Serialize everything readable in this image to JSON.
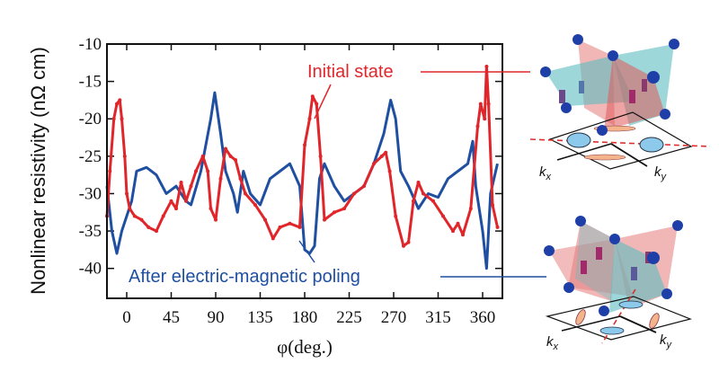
{
  "chart_data": {
    "type": "line",
    "xlabel": "φ(deg.)",
    "ylabel": "Nonlinear resistivity (nΩ cm)",
    "xlim": [
      -20,
      380
    ],
    "ylim": [
      -44,
      -10
    ],
    "xticks": [
      0,
      45,
      90,
      135,
      180,
      225,
      270,
      315,
      360
    ],
    "yticks": [
      -10,
      -15,
      -20,
      -25,
      -30,
      -35,
      -40
    ],
    "grid": false,
    "series": [
      {
        "name": "Initial state",
        "color": "#e0262b",
        "x": [
          -20,
          -17,
          -13,
          -10,
          -7,
          -5,
          -2,
          0,
          3,
          8,
          15,
          22,
          30,
          37,
          45,
          50,
          55,
          60,
          65,
          70,
          77,
          82,
          85,
          90,
          95,
          100,
          105,
          110,
          115,
          120,
          130,
          140,
          148,
          155,
          165,
          175,
          180,
          185,
          188,
          192,
          196,
          200,
          210,
          220,
          230,
          240,
          250,
          258,
          262,
          266,
          272,
          280,
          285,
          290,
          295,
          300,
          310,
          320,
          330,
          335,
          340,
          348,
          355,
          358,
          362,
          364,
          366,
          370,
          375
        ],
        "y": [
          -33,
          -27,
          -20,
          -18,
          -17.5,
          -20,
          -25,
          -30,
          -32,
          -33,
          -33.5,
          -34.5,
          -35,
          -33,
          -31,
          -32,
          -28.5,
          -31,
          -29,
          -27,
          -25,
          -27,
          -32,
          -33.5,
          -28,
          -24,
          -25,
          -25.5,
          -28,
          -30,
          -31.5,
          -33.5,
          -36,
          -34.5,
          -34,
          -34.5,
          -23.5,
          -20,
          -17,
          -18,
          -25,
          -33.5,
          -32.5,
          -32,
          -30,
          -29,
          -26,
          -25,
          -24.5,
          -27,
          -33,
          -37,
          -36.5,
          -31,
          -28.5,
          -30,
          -31,
          -33,
          -35,
          -34,
          -35.5,
          -32,
          -21,
          -18,
          -20,
          -13,
          -18,
          -31.5,
          -34.5
        ]
      },
      {
        "name": "After electric-magnetic poling",
        "color": "#1f4fa0",
        "x": [
          -20,
          -15,
          -10,
          -5,
          0,
          5,
          10,
          20,
          30,
          40,
          50,
          60,
          65,
          75,
          85,
          89,
          95,
          100,
          108,
          112,
          118,
          125,
          135,
          145,
          155,
          165,
          175,
          180,
          185,
          190,
          195,
          200,
          210,
          220,
          230,
          240,
          250,
          260,
          267,
          272,
          277,
          285,
          295,
          305,
          315,
          325,
          335,
          345,
          350,
          353,
          360,
          364,
          368,
          375
        ],
        "y": [
          -29,
          -35,
          -38,
          -35,
          -33,
          -31,
          -27,
          -26.5,
          -27.5,
          -30,
          -29,
          -31,
          -31.5,
          -27,
          -20,
          -16.5,
          -22,
          -27,
          -30,
          -32.5,
          -27,
          -30,
          -31.5,
          -28,
          -27,
          -26,
          -29,
          -37.5,
          -38,
          -37,
          -28,
          -26,
          -29,
          -31,
          -30,
          -29,
          -26,
          -22,
          -17.5,
          -20,
          -27,
          -29,
          -32,
          -30,
          -30.5,
          -28,
          -27,
          -26,
          -23,
          -29,
          -35,
          -40,
          -30,
          -26
        ]
      }
    ],
    "annotations": [
      "Initial state",
      "After electric-magnetic poling"
    ]
  },
  "diagram": {
    "top": {
      "kx": "k",
      "kx_sub": "x",
      "ky": "k",
      "ky_sub": "y"
    },
    "bottom": {
      "kx": "k",
      "kx_sub": "x",
      "ky": "k",
      "ky_sub": "y"
    }
  }
}
